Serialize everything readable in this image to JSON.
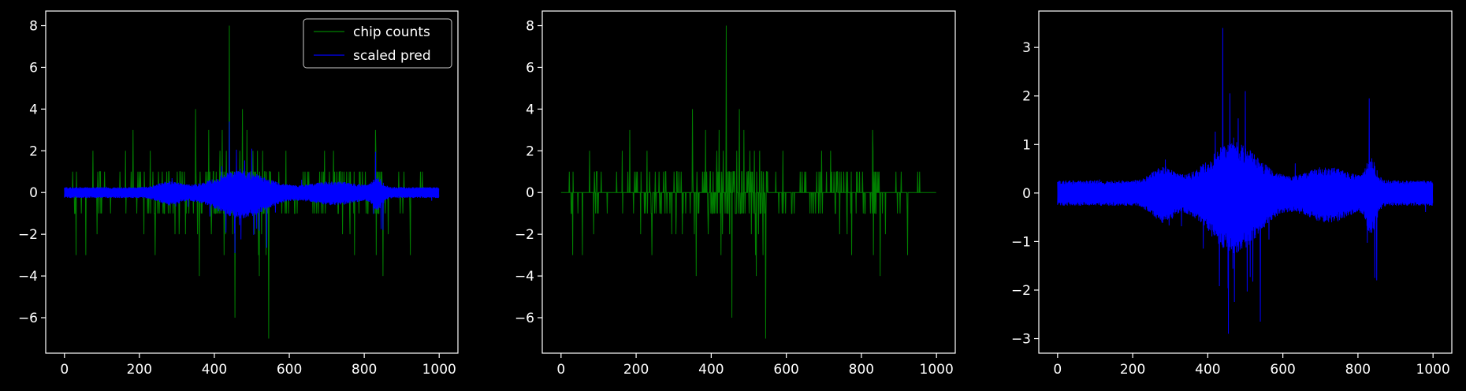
{
  "figure": {
    "background": "#000000",
    "axes_color": "#ffffff",
    "text_color": "#ffffff",
    "series_colors": {
      "counts": "#008000",
      "pred": "#0000ff"
    }
  },
  "chart_data": [
    {
      "type": "line",
      "panel": "left",
      "title": "",
      "xlabel": "",
      "ylabel": "",
      "xlim": [
        -50,
        1050
      ],
      "ylim": [
        -7.7,
        8.7
      ],
      "xticks": [
        0,
        200,
        400,
        600,
        800,
        1000
      ],
      "xtick_labels": [
        "0",
        "200",
        "400",
        "600",
        "800",
        "1000"
      ],
      "yticks": [
        -6,
        -4,
        -2,
        0,
        2,
        4,
        6,
        8
      ],
      "ytick_labels": [
        "−6",
        "−4",
        "−2",
        "0",
        "2",
        "4",
        "6",
        "8"
      ],
      "legend": {
        "location": "top-right",
        "entries": [
          "chip counts",
          "scaled pred"
        ]
      },
      "series": [
        {
          "name": "chip counts",
          "color": "#008000",
          "kind": "counts",
          "n": 1000,
          "range": [
            -7,
            8
          ],
          "spikes": [
            [
              440,
              8
            ],
            [
              455,
              6
            ],
            [
              545,
              -7
            ],
            [
              455,
              -6
            ],
            [
              350,
              4
            ],
            [
              475,
              4
            ],
            [
              830,
              3
            ],
            [
              360,
              -4
            ],
            [
              520,
              -4
            ],
            [
              850,
              -4
            ]
          ]
        },
        {
          "name": "scaled pred",
          "color": "#0000ff",
          "kind": "pred",
          "n": 1000,
          "range": [
            -3,
            3.4
          ]
        }
      ]
    },
    {
      "type": "line",
      "panel": "middle",
      "title": "",
      "xlabel": "",
      "ylabel": "",
      "xlim": [
        -50,
        1050
      ],
      "ylim": [
        -7.7,
        8.7
      ],
      "xticks": [
        0,
        200,
        400,
        600,
        800,
        1000
      ],
      "xtick_labels": [
        "0",
        "200",
        "400",
        "600",
        "800",
        "1000"
      ],
      "yticks": [
        -6,
        -4,
        -2,
        0,
        2,
        4,
        6,
        8
      ],
      "ytick_labels": [
        "−6",
        "−4",
        "−2",
        "0",
        "2",
        "4",
        "6",
        "8"
      ],
      "series": [
        {
          "color": "#008000",
          "kind": "counts",
          "n": 1000,
          "range": [
            -7,
            8
          ],
          "spikes": [
            [
              440,
              8
            ],
            [
              455,
              6
            ],
            [
              545,
              -7
            ],
            [
              455,
              -6
            ],
            [
              350,
              4
            ],
            [
              475,
              4
            ],
            [
              830,
              3
            ],
            [
              360,
              -4
            ],
            [
              520,
              -4
            ],
            [
              850,
              -4
            ]
          ]
        }
      ]
    },
    {
      "type": "line",
      "panel": "right",
      "title": "",
      "xlabel": "",
      "ylabel": "",
      "xlim": [
        -50,
        1050
      ],
      "ylim": [
        -3.3,
        3.75
      ],
      "xticks": [
        0,
        200,
        400,
        600,
        800,
        1000
      ],
      "xtick_labels": [
        "0",
        "200",
        "400",
        "600",
        "800",
        "1000"
      ],
      "yticks": [
        -3,
        -2,
        -1,
        0,
        1,
        2,
        3
      ],
      "ytick_labels": [
        "−3",
        "−2",
        "−1",
        "0",
        "1",
        "2",
        "3"
      ],
      "series": [
        {
          "color": "#0000ff",
          "kind": "pred",
          "n": 1000,
          "range": [
            -2.95,
            3.45
          ]
        }
      ]
    }
  ]
}
